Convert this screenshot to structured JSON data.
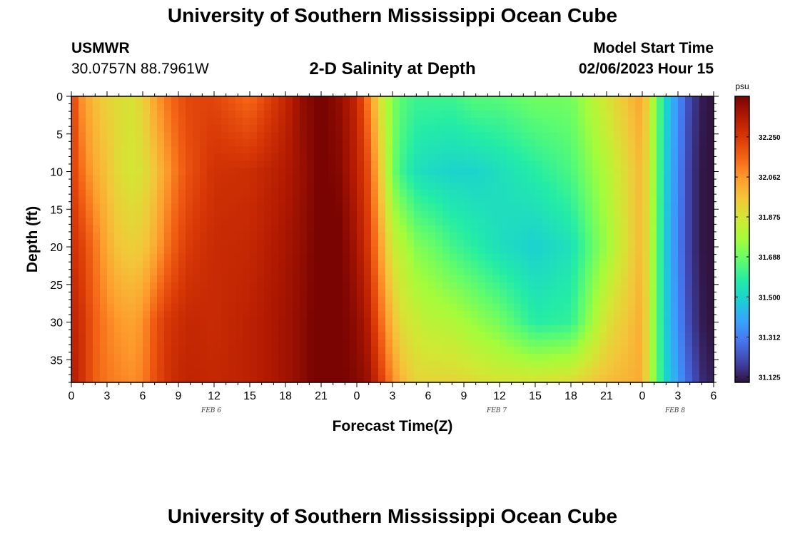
{
  "header": {
    "title": "University of Southern Mississippi Ocean Cube",
    "station": "USMWR",
    "coords": "30.0757N  88.7961W",
    "plot_title": "2-D Salinity at Depth",
    "start_label": "Model Start Time",
    "start_value": "02/06/2023 Hour 15"
  },
  "footer": {
    "title": "University of Southern Mississippi Ocean Cube"
  },
  "colors": {
    "palette": [
      "#30123b",
      "#4145ab",
      "#4675ed",
      "#39a2fc",
      "#1bcfd4",
      "#24eca6",
      "#61fc6c",
      "#a4fc3b",
      "#d1e834",
      "#f3c63a",
      "#fe9b2d",
      "#f36315",
      "#d93806",
      "#b11901",
      "#7a0402"
    ]
  },
  "chart_data": {
    "type": "heatmap",
    "title": "2-D Salinity at Depth",
    "xlabel": "Forecast Time(Z)",
    "ylabel": "Depth (ft)",
    "x_ticks": [
      "0",
      "3",
      "6",
      "9",
      "12",
      "15",
      "18",
      "21",
      "0",
      "3",
      "6",
      "9",
      "12",
      "15",
      "18",
      "21",
      "0",
      "3",
      "6"
    ],
    "x_range_hours": [
      0,
      54
    ],
    "day_labels": [
      {
        "label": "FEB 6",
        "hour": 12
      },
      {
        "label": "FEB 7",
        "hour": 36
      },
      {
        "label": "FEB 8",
        "hour": 51
      }
    ],
    "y_ticks": [
      0,
      5,
      10,
      15,
      20,
      25,
      30,
      35
    ],
    "y_range_ft": [
      0,
      38
    ],
    "y_inverted": true,
    "colorbar": {
      "unit": "psu",
      "ticks": [
        32.25,
        32.062,
        31.875,
        31.688,
        31.5,
        31.312,
        31.125
      ],
      "tick_labels": [
        "32.250",
        "32.062",
        "31.875",
        "31.688",
        "31.500",
        "31.312",
        "31.125"
      ],
      "range": [
        31.1,
        32.44
      ]
    },
    "profile_hours": [
      0,
      1,
      2,
      3,
      4,
      5,
      6,
      7,
      8,
      9,
      10,
      12,
      15,
      18,
      19.5,
      21,
      22.5,
      24,
      25,
      26,
      27,
      28,
      29,
      30,
      32,
      34,
      36,
      39,
      42,
      45,
      48,
      49,
      50,
      51,
      52,
      53,
      54
    ],
    "profile_depths_ft": [
      0,
      10,
      20,
      30,
      38
    ],
    "salinity_psu": [
      [
        32.25,
        32.25,
        32.28,
        32.32,
        32.35
      ],
      [
        32.05,
        32.12,
        32.22,
        32.26,
        32.26
      ],
      [
        31.98,
        32.02,
        32.12,
        32.16,
        32.16
      ],
      [
        31.93,
        31.97,
        32.02,
        32.1,
        32.12
      ],
      [
        31.9,
        31.9,
        31.96,
        32.06,
        32.1
      ],
      [
        31.88,
        31.87,
        31.94,
        32.04,
        32.08
      ],
      [
        31.93,
        31.89,
        31.95,
        32.07,
        32.1
      ],
      [
        32.04,
        31.96,
        32.02,
        32.18,
        32.2
      ],
      [
        32.12,
        32.05,
        32.12,
        32.25,
        32.26
      ],
      [
        32.18,
        32.14,
        32.2,
        32.28,
        32.3
      ],
      [
        32.22,
        32.2,
        32.25,
        32.3,
        32.31
      ],
      [
        32.22,
        32.27,
        32.29,
        32.29,
        32.3
      ],
      [
        32.14,
        32.28,
        32.3,
        32.32,
        32.32
      ],
      [
        32.3,
        32.34,
        32.36,
        32.37,
        32.37
      ],
      [
        32.4,
        32.39,
        32.4,
        32.41,
        32.41
      ],
      [
        32.45,
        32.45,
        32.46,
        32.47,
        32.47
      ],
      [
        32.4,
        32.42,
        32.45,
        32.45,
        32.45
      ],
      [
        32.3,
        32.32,
        32.36,
        32.4,
        32.42
      ],
      [
        32.1,
        32.2,
        32.25,
        32.33,
        32.38
      ],
      [
        31.88,
        31.95,
        32.05,
        32.15,
        32.25
      ],
      [
        31.72,
        31.7,
        31.85,
        31.98,
        32.08
      ],
      [
        31.65,
        31.6,
        31.8,
        31.88,
        31.98
      ],
      [
        31.62,
        31.54,
        31.72,
        31.85,
        31.92
      ],
      [
        31.62,
        31.52,
        31.7,
        31.82,
        31.92
      ],
      [
        31.62,
        31.5,
        31.63,
        31.8,
        31.92
      ],
      [
        31.66,
        31.5,
        31.58,
        31.75,
        31.9
      ],
      [
        31.66,
        31.53,
        31.53,
        31.7,
        31.88
      ],
      [
        31.7,
        31.58,
        31.49,
        31.58,
        31.88
      ],
      [
        31.7,
        31.64,
        31.54,
        31.6,
        31.9
      ],
      [
        31.88,
        31.8,
        31.76,
        31.88,
        31.98
      ],
      [
        32.04,
        32.0,
        32.0,
        32.02,
        32.02
      ],
      [
        31.76,
        31.75,
        31.74,
        31.73,
        31.73
      ],
      [
        31.5,
        31.48,
        31.47,
        31.48,
        31.5
      ],
      [
        31.35,
        31.33,
        31.32,
        31.34,
        31.38
      ],
      [
        31.2,
        31.18,
        31.18,
        31.2,
        31.25
      ],
      [
        31.12,
        31.11,
        31.11,
        31.12,
        31.15
      ],
      [
        31.1,
        31.1,
        31.1,
        31.1,
        31.12
      ]
    ]
  }
}
